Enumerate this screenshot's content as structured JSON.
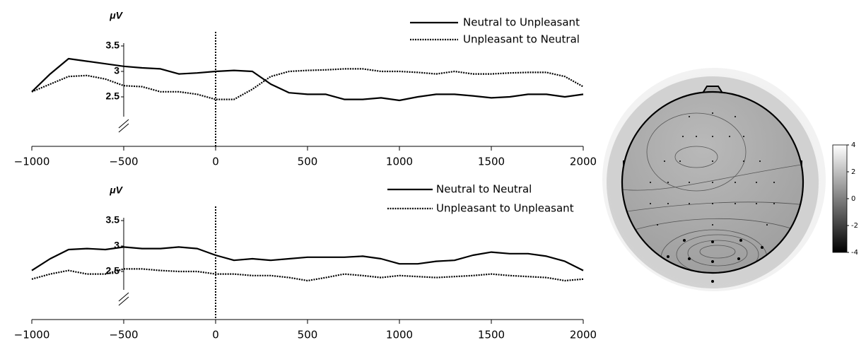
{
  "chart_data": [
    {
      "type": "line",
      "y_label": "μV",
      "x": [
        -1000,
        -900,
        -800,
        -700,
        -600,
        -500,
        -400,
        -300,
        -200,
        -100,
        0,
        100,
        200,
        300,
        400,
        500,
        600,
        700,
        800,
        900,
        1000,
        1100,
        1200,
        1300,
        1400,
        1500,
        1600,
        1700,
        1800,
        1900,
        2000
      ],
      "series": [
        {
          "name": "Neutral to Unpleasant",
          "color": "#000000",
          "dash": "solid",
          "values": [
            2.6,
            2.95,
            3.25,
            3.2,
            3.15,
            3.1,
            3.07,
            3.05,
            2.95,
            2.97,
            3.0,
            3.02,
            3.0,
            2.75,
            2.58,
            2.55,
            2.55,
            2.45,
            2.45,
            2.48,
            2.43,
            2.5,
            2.55,
            2.55,
            2.52,
            2.48,
            2.5,
            2.55,
            2.55,
            2.5,
            2.55
          ]
        },
        {
          "name": "Unpleasant to Neutral",
          "color": "#000000",
          "dash": "dotted",
          "values": [
            2.6,
            2.75,
            2.9,
            2.92,
            2.85,
            2.72,
            2.7,
            2.6,
            2.6,
            2.55,
            2.45,
            2.45,
            2.65,
            2.9,
            3.0,
            3.02,
            3.03,
            3.05,
            3.05,
            3.0,
            3.0,
            2.98,
            2.95,
            3.0,
            2.95,
            2.95,
            2.97,
            2.98,
            2.98,
            2.9,
            2.7
          ]
        }
      ],
      "xlim": [
        -1000,
        2000
      ],
      "xticks": [
        {
          "value": -1000,
          "label": "−1000"
        },
        {
          "value": -500,
          "label": "−500"
        },
        0,
        500,
        1000,
        1500,
        2000
      ],
      "ylim": [
        1.5,
        4
      ],
      "yticks": [
        2.5,
        3,
        3.5
      ],
      "y_axis_at": -500,
      "vline_x": 0
    },
    {
      "type": "line",
      "y_label": "μV",
      "x": [
        -1000,
        -900,
        -800,
        -700,
        -600,
        -500,
        -400,
        -300,
        -200,
        -100,
        0,
        100,
        200,
        300,
        400,
        500,
        600,
        700,
        800,
        900,
        1000,
        1100,
        1200,
        1300,
        1400,
        1500,
        1600,
        1700,
        1800,
        1900,
        2000
      ],
      "series": [
        {
          "name": "Neutral to Neutral",
          "color": "#000000",
          "dash": "solid",
          "values": [
            2.52,
            2.75,
            2.93,
            2.95,
            2.93,
            2.98,
            2.95,
            2.95,
            2.98,
            2.95,
            2.82,
            2.72,
            2.75,
            2.72,
            2.75,
            2.78,
            2.78,
            2.78,
            2.8,
            2.75,
            2.65,
            2.65,
            2.7,
            2.72,
            2.82,
            2.88,
            2.85,
            2.85,
            2.8,
            2.7,
            2.52
          ]
        },
        {
          "name": "Unpleasant to Unpleasant",
          "color": "#000000",
          "dash": "dotted",
          "values": [
            2.35,
            2.45,
            2.52,
            2.45,
            2.45,
            2.55,
            2.55,
            2.52,
            2.5,
            2.5,
            2.45,
            2.45,
            2.42,
            2.42,
            2.38,
            2.32,
            2.38,
            2.45,
            2.42,
            2.38,
            2.42,
            2.4,
            2.38,
            2.4,
            2.42,
            2.45,
            2.42,
            2.4,
            2.38,
            2.32,
            2.35
          ]
        }
      ],
      "xlim": [
        -1000,
        2000
      ],
      "xticks": [
        {
          "value": -1000,
          "label": "−1000"
        },
        {
          "value": -500,
          "label": "−500"
        },
        0,
        500,
        1000,
        1500,
        2000
      ],
      "ylim": [
        1.5,
        4
      ],
      "yticks": [
        2.5,
        3,
        3.5
      ],
      "y_axis_at": -500,
      "vline_x": 0
    },
    {
      "type": "colorbar",
      "ylim": [
        -4,
        4
      ],
      "yticks": [
        4,
        2,
        0,
        -2,
        -4
      ],
      "colors": [
        "#ffffff",
        "#000000"
      ]
    }
  ]
}
